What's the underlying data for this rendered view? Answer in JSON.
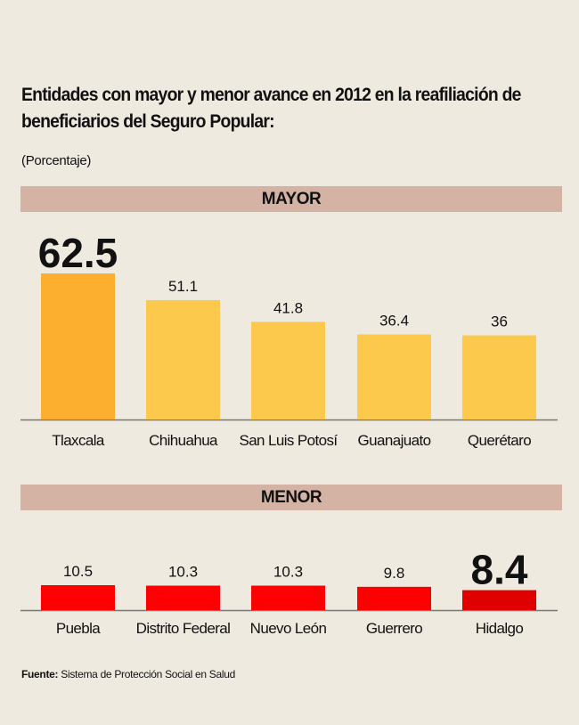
{
  "title": "Entidades con mayor y menor avance en 2012 en la reafiliación de beneficiarios del Seguro Popular:",
  "subtitle": "(Porcentaje)",
  "source_label": "Fuente:",
  "source_text": "Sistema de Protección Social en Salud",
  "colors": {
    "background": "#efeae0",
    "band": "#d4b3a5",
    "mayor_bar": "#fdc94d",
    "mayor_highlight": "#fcaf2f",
    "menor_bar": "#ff0000",
    "menor_highlight": "#e00000",
    "axis": "#777777"
  },
  "chart_data": [
    {
      "type": "bar",
      "title": "MAYOR",
      "categories": [
        "Tlaxcala",
        "Chihuahua",
        "San Luis Potosí",
        "Guanajuato",
        "Querétaro"
      ],
      "values": [
        62.5,
        51.1,
        41.8,
        36.4,
        36
      ],
      "highlight_index": 0,
      "xlabel": "",
      "ylabel": "Porcentaje",
      "ylim": [
        0,
        62.5
      ],
      "grid": false
    },
    {
      "type": "bar",
      "title": "MENOR",
      "categories": [
        "Puebla",
        "Distrito Federal",
        "Nuevo León",
        "Guerrero",
        "Hidalgo"
      ],
      "values": [
        10.5,
        10.3,
        10.3,
        9.8,
        8.4
      ],
      "highlight_index": 4,
      "xlabel": "",
      "ylabel": "Porcentaje",
      "ylim": [
        0,
        62.5
      ],
      "grid": false
    }
  ]
}
